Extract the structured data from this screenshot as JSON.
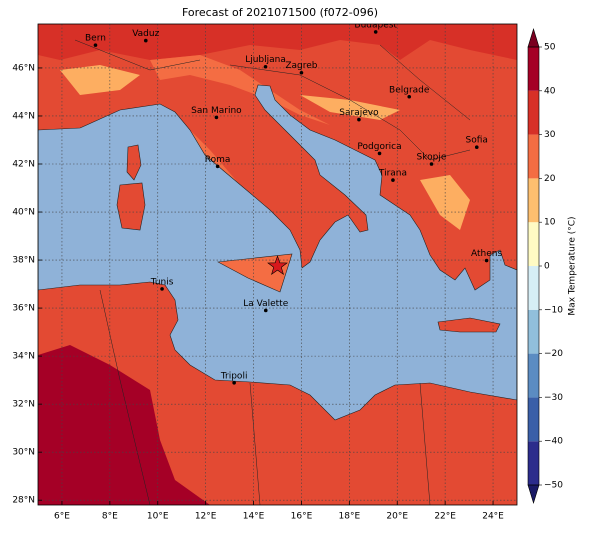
{
  "chart_data": {
    "type": "map",
    "title": "Forecast of 2021071500 (f072-096)",
    "xlim": [
      5,
      25
    ],
    "ylim": [
      27.8,
      47.83
    ],
    "xticks": [
      {
        "value": 6,
        "label": "6°E"
      },
      {
        "value": 8,
        "label": "8°E"
      },
      {
        "value": 10,
        "label": "10°E"
      },
      {
        "value": 12,
        "label": "12°E"
      },
      {
        "value": 14,
        "label": "14°E"
      },
      {
        "value": 16,
        "label": "16°E"
      },
      {
        "value": 18,
        "label": "18°E"
      },
      {
        "value": 20,
        "label": "20°E"
      },
      {
        "value": 22,
        "label": "22°E"
      },
      {
        "value": 24,
        "label": "24°E"
      }
    ],
    "yticks": [
      {
        "value": 28,
        "label": "28°N"
      },
      {
        "value": 30,
        "label": "30°N"
      },
      {
        "value": 32,
        "label": "32°N"
      },
      {
        "value": 34,
        "label": "34°N"
      },
      {
        "value": 36,
        "label": "36°N"
      },
      {
        "value": 38,
        "label": "38°N"
      },
      {
        "value": 40,
        "label": "40°N"
      },
      {
        "value": 42,
        "label": "42°N"
      },
      {
        "value": 44,
        "label": "44°N"
      },
      {
        "value": 46,
        "label": "46°N"
      }
    ],
    "grid": true,
    "cities": [
      {
        "name": "Bern",
        "lon": 7.4,
        "lat": 46.95
      },
      {
        "name": "Vaduz",
        "lon": 9.5,
        "lat": 47.14
      },
      {
        "name": "Budapest",
        "lon": 19.1,
        "lat": 47.5
      },
      {
        "name": "Ljubljana",
        "lon": 14.5,
        "lat": 46.05
      },
      {
        "name": "Zagreb",
        "lon": 16.0,
        "lat": 45.8
      },
      {
        "name": "Belgrade",
        "lon": 20.5,
        "lat": 44.8
      },
      {
        "name": "San Marino",
        "lon": 12.45,
        "lat": 43.94
      },
      {
        "name": "Sarajevo",
        "lon": 18.4,
        "lat": 43.85
      },
      {
        "name": "Podgorica",
        "lon": 19.26,
        "lat": 42.44
      },
      {
        "name": "Skopje",
        "lon": 21.43,
        "lat": 42.0
      },
      {
        "name": "Sofia",
        "lon": 23.32,
        "lat": 42.7
      },
      {
        "name": "Roma",
        "lon": 12.5,
        "lat": 41.9
      },
      {
        "name": "Tirana",
        "lon": 19.82,
        "lat": 41.33
      },
      {
        "name": "Athens",
        "lon": 23.73,
        "lat": 37.98
      },
      {
        "name": "Tunis",
        "lon": 10.18,
        "lat": 36.8
      },
      {
        "name": "La Valette",
        "lon": 14.51,
        "lat": 35.9
      },
      {
        "name": "Tripoli",
        "lon": 13.19,
        "lat": 32.89
      }
    ],
    "marker": {
      "lon": 15.0,
      "lat": 37.75,
      "color": "#d7191c"
    },
    "colorbar": {
      "label": "Max Temperature (°C)",
      "levels": [
        -50,
        -40,
        -30,
        -20,
        -10,
        0,
        10,
        20,
        30,
        40,
        50
      ],
      "colors": [
        "#2c2c8c",
        "#3a5fa8",
        "#5b8cc2",
        "#91bfdb",
        "#d6eef5",
        "#fffbc4",
        "#fdbf6f",
        "#f46d43",
        "#d73027",
        "#a50026"
      ],
      "under_color": "#1a1a66",
      "over_color": "#7a0020",
      "ticks": [
        {
          "value": 50,
          "label": "50"
        },
        {
          "value": 40,
          "label": "40"
        },
        {
          "value": 30,
          "label": "30"
        },
        {
          "value": 20,
          "label": "20"
        },
        {
          "value": 10,
          "label": "10"
        },
        {
          "value": 0,
          "label": "0"
        },
        {
          "value": -10,
          "label": "−10"
        },
        {
          "value": -20,
          "label": "−20"
        },
        {
          "value": -30,
          "label": "−30"
        },
        {
          "value": -40,
          "label": "−40"
        },
        {
          "value": -50,
          "label": "−50"
        }
      ]
    }
  }
}
